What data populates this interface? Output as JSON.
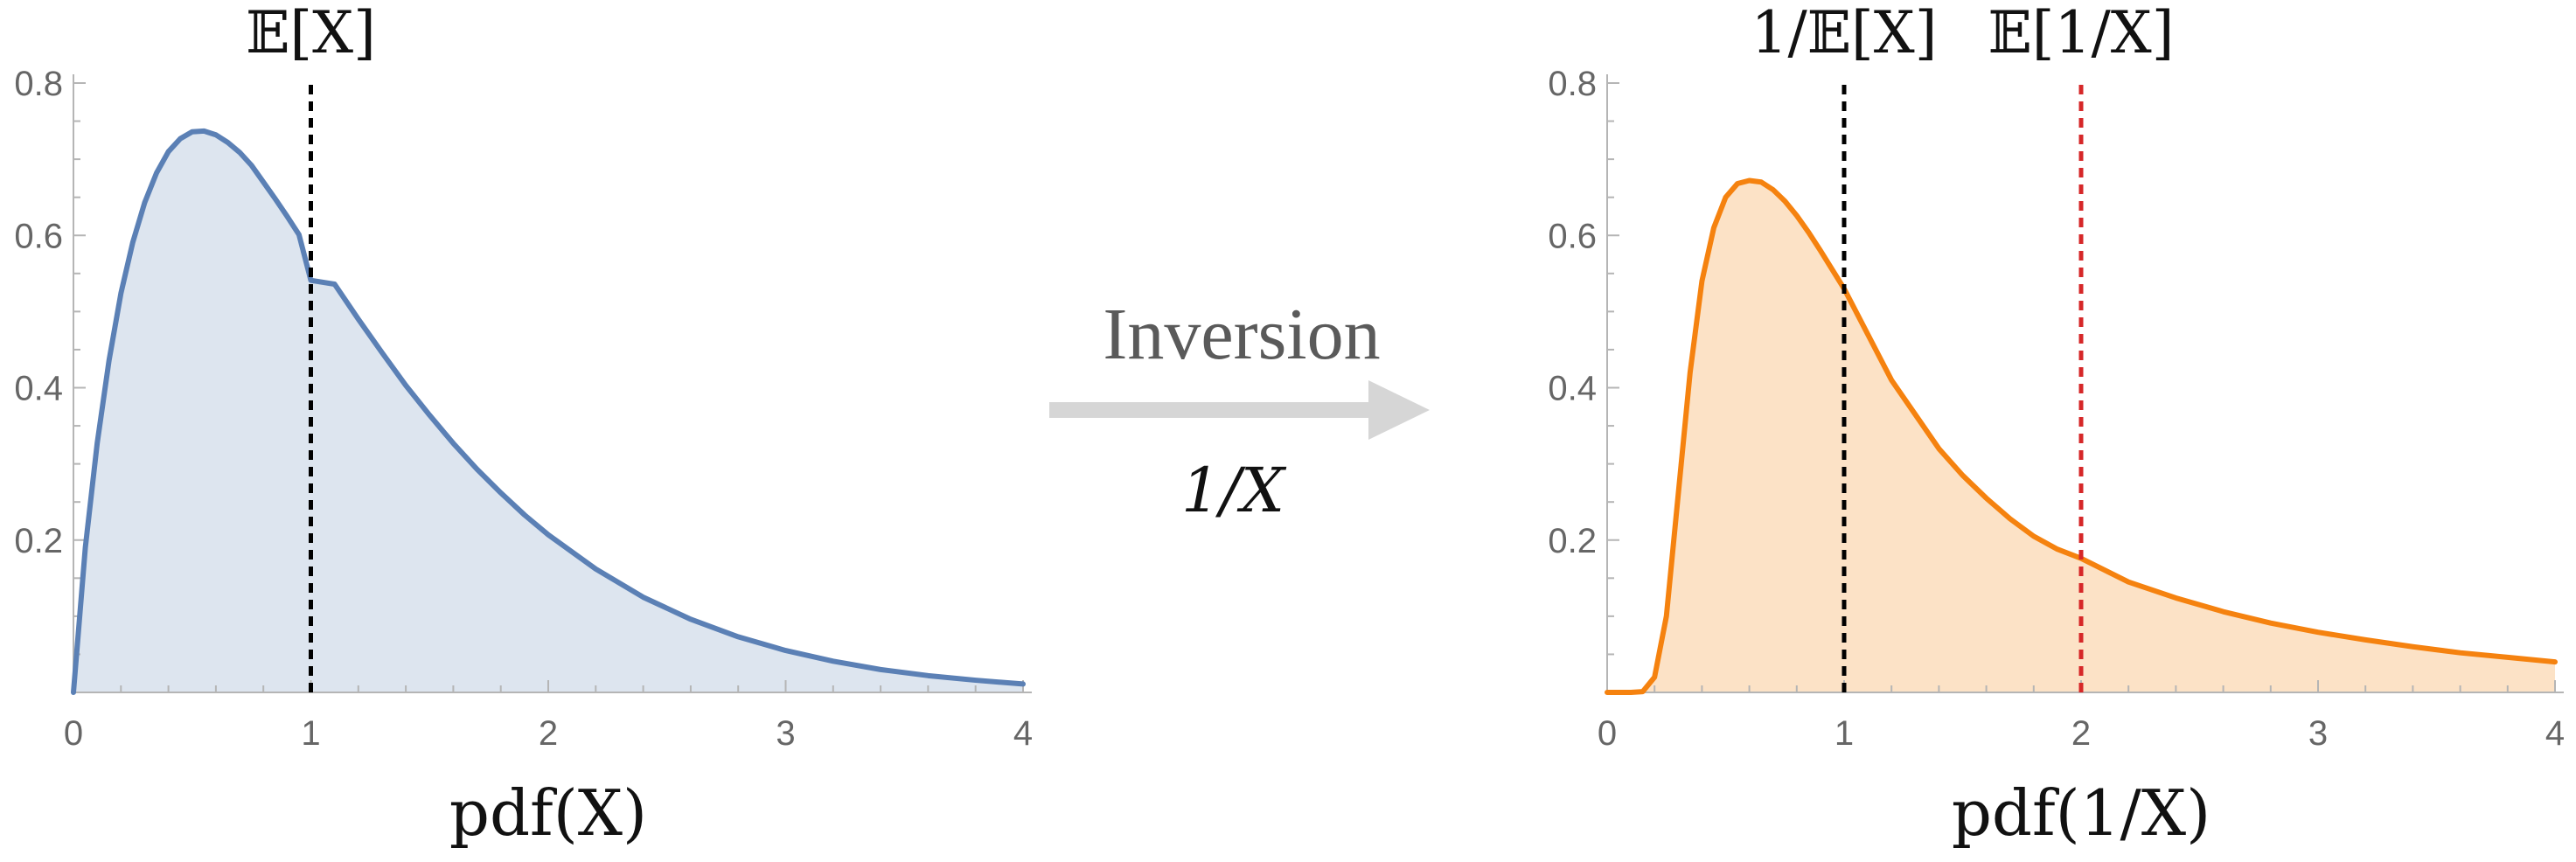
{
  "chart_data": [
    {
      "type": "area",
      "caption": "pdf(X)",
      "x": [
        0,
        0.05,
        0.1,
        0.15,
        0.2,
        0.25,
        0.3,
        0.35,
        0.4,
        0.45,
        0.5,
        0.55,
        0.6,
        0.65,
        0.7,
        0.75,
        0.8,
        0.85,
        0.9,
        0.95,
        1.0,
        1.1,
        1.2,
        1.3,
        1.4,
        1.5,
        1.6,
        1.7,
        1.8,
        1.9,
        2.0,
        2.2,
        2.4,
        2.6,
        2.8,
        3.0,
        3.2,
        3.4,
        3.6,
        3.8,
        4.0
      ],
      "y": [
        0,
        0.19,
        0.327,
        0.436,
        0.524,
        0.591,
        0.643,
        0.682,
        0.71,
        0.727,
        0.736,
        0.737,
        0.732,
        0.722,
        0.709,
        0.692,
        0.67,
        0.648,
        0.625,
        0.601,
        0.541,
        0.536,
        0.49,
        0.446,
        0.403,
        0.364,
        0.327,
        0.293,
        0.262,
        0.233,
        0.207,
        0.162,
        0.125,
        0.096,
        0.073,
        0.055,
        0.041,
        0.03,
        0.022,
        0.016,
        0.011
      ],
      "xlim": [
        0,
        4
      ],
      "ylim": [
        0,
        0.8
      ],
      "x_ticks": [
        "0",
        "1",
        "2",
        "3",
        "4"
      ],
      "y_ticks": [
        "0.2",
        "0.4",
        "0.6",
        "0.8"
      ],
      "reference_lines": [
        {
          "x": 1,
          "label": "𝔼[X]",
          "color": "#000000"
        }
      ],
      "line_color": "#5b80b5",
      "fill_color": "#dde5ef"
    },
    {
      "type": "area",
      "caption": "pdf(1/X)",
      "x": [
        0,
        0.1,
        0.15,
        0.2,
        0.25,
        0.3,
        0.35,
        0.4,
        0.45,
        0.5,
        0.55,
        0.6,
        0.65,
        0.7,
        0.75,
        0.8,
        0.85,
        0.9,
        1.0,
        1.1,
        1.2,
        1.3,
        1.4,
        1.5,
        1.6,
        1.7,
        1.8,
        1.9,
        2.0,
        2.2,
        2.4,
        2.6,
        2.8,
        3.0,
        3.2,
        3.4,
        3.6,
        3.8,
        4.0
      ],
      "y": [
        0,
        0,
        0.001,
        0.02,
        0.1,
        0.26,
        0.42,
        0.54,
        0.61,
        0.65,
        0.668,
        0.672,
        0.67,
        0.66,
        0.645,
        0.626,
        0.604,
        0.58,
        0.53,
        0.47,
        0.41,
        0.365,
        0.32,
        0.285,
        0.255,
        0.228,
        0.205,
        0.188,
        0.176,
        0.145,
        0.124,
        0.106,
        0.091,
        0.079,
        0.069,
        0.06,
        0.052,
        0.046,
        0.04
      ],
      "xlim": [
        0,
        4
      ],
      "ylim": [
        0,
        0.8
      ],
      "x_ticks": [
        "0",
        "1",
        "2",
        "3",
        "4"
      ],
      "y_ticks": [
        "0.2",
        "0.4",
        "0.6",
        "0.8"
      ],
      "reference_lines": [
        {
          "x": 1,
          "label": "1/𝔼[X]",
          "color": "#000000"
        },
        {
          "x": 2,
          "label": "𝔼[1/X]",
          "color": "#d62728"
        }
      ],
      "line_color": "#f5820f",
      "fill_color": "#fce2c6"
    }
  ],
  "transform": {
    "title": "Inversion",
    "formula": "1/X",
    "arrow_color": "#d6d6d6"
  }
}
